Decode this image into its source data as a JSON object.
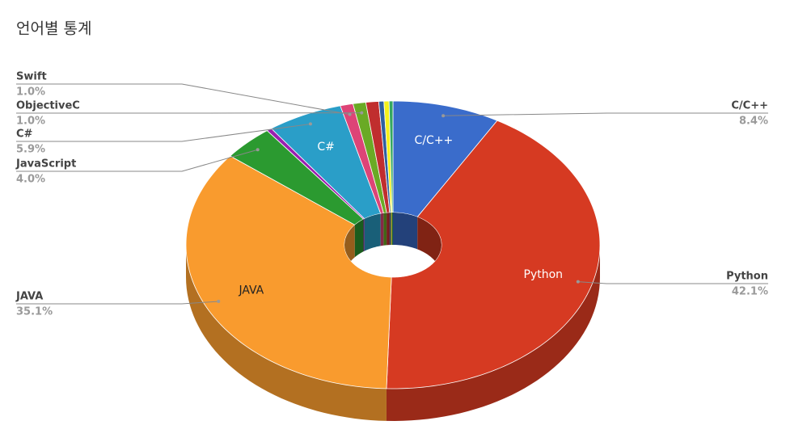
{
  "chart_data": {
    "type": "pie",
    "title": "언어별 통계",
    "categories": [
      "C/C++",
      "Python",
      "JAVA",
      "JavaScript",
      null,
      "C#",
      "Swift",
      "ObjectiveC",
      null,
      null,
      null,
      null
    ],
    "values": [
      8.4,
      42.1,
      35.1,
      4.0,
      0.4,
      5.9,
      1.0,
      1.0,
      1.0,
      0.4,
      0.4,
      0.3
    ],
    "value_labels": [
      "8.4%",
      "42.1%",
      "35.1%",
      "4.0%",
      null,
      "5.9%",
      "1.0%",
      "1.0%",
      null,
      null,
      null,
      null
    ],
    "colors": [
      "#3a6ccb",
      "#d63a22",
      "#f99b2e",
      "#2b9a30",
      "#9a1fb0",
      "#2a9ec8",
      "#dd4477",
      "#6aaa25",
      "#c02e2e",
      "#2f5fa0",
      "#f5f01a",
      "#35a860"
    ]
  }
}
